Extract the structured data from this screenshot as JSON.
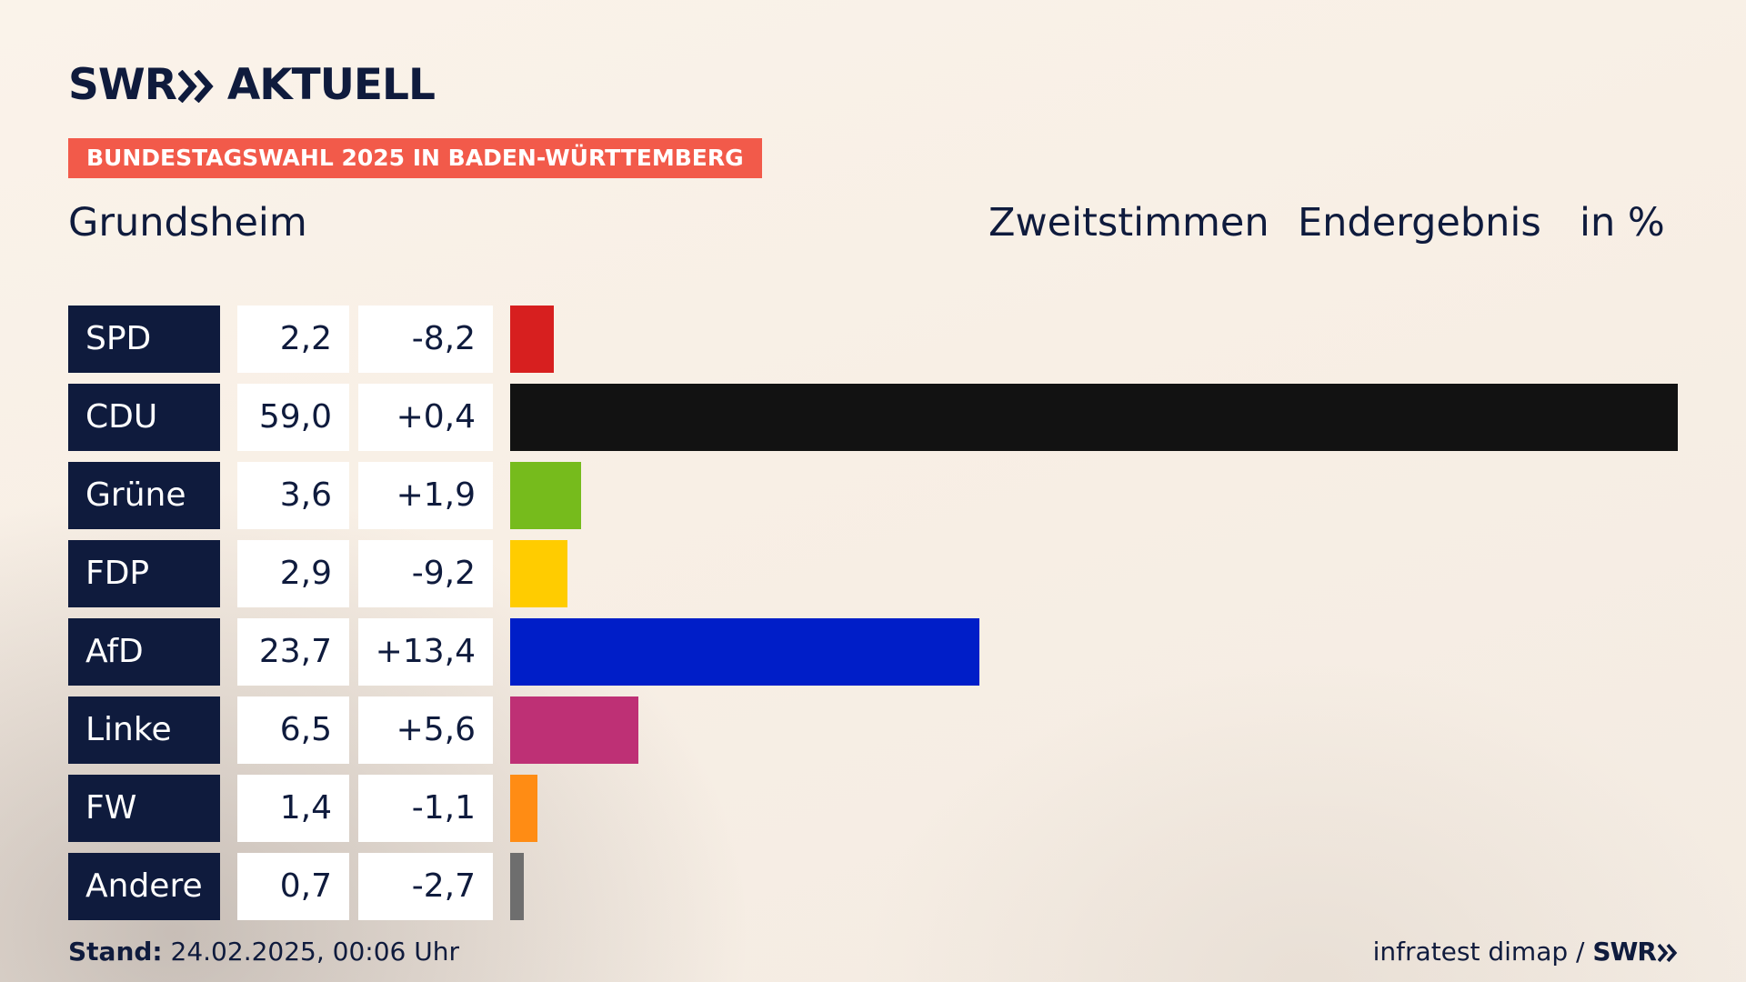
{
  "brand": {
    "name": "SWR",
    "product": "AKTUELL",
    "footer_logo": "SWR"
  },
  "banner": {
    "text": "BUNDESTAGSWAHL 2025 IN BADEN-WÜRTTEMBERG",
    "color": "#f25a4a"
  },
  "place": "Grundsheim",
  "header": {
    "kind": "Zweitstimmen",
    "status": "Endergebnis",
    "unit": "in %"
  },
  "footer": {
    "stand_label": "Stand:",
    "stand_value": "24.02.2025, 00:06 Uhr",
    "source": "infratest dimap /"
  },
  "colors": {
    "navy": "#0f1b3d",
    "background": "#f8efe5"
  },
  "chart_data": {
    "type": "bar",
    "orientation": "horizontal",
    "unit": "%",
    "xlim": [
      0,
      59.0
    ],
    "categories": [
      "SPD",
      "CDU",
      "Grüne",
      "FDP",
      "AfD",
      "Linke",
      "FW",
      "Andere"
    ],
    "values": [
      2.2,
      59.0,
      3.6,
      2.9,
      23.7,
      6.5,
      1.4,
      0.7
    ],
    "value_labels": [
      "2,2",
      "59,0",
      "3,6",
      "2,9",
      "23,7",
      "6,5",
      "1,4",
      "0,7"
    ],
    "diff_labels": [
      "-8,2",
      "+0,4",
      "+1,9",
      "-9,2",
      "+13,4",
      "+5,6",
      "-1,1",
      "-2,7"
    ],
    "diffs": [
      -8.2,
      0.4,
      1.9,
      -9.2,
      13.4,
      5.6,
      -1.1,
      -2.7
    ],
    "colors": [
      "#d71f1f",
      "#121212",
      "#76bb1c",
      "#ffcc00",
      "#001ec8",
      "#be3075",
      "#ff8c14",
      "#6e6e6e"
    ]
  }
}
